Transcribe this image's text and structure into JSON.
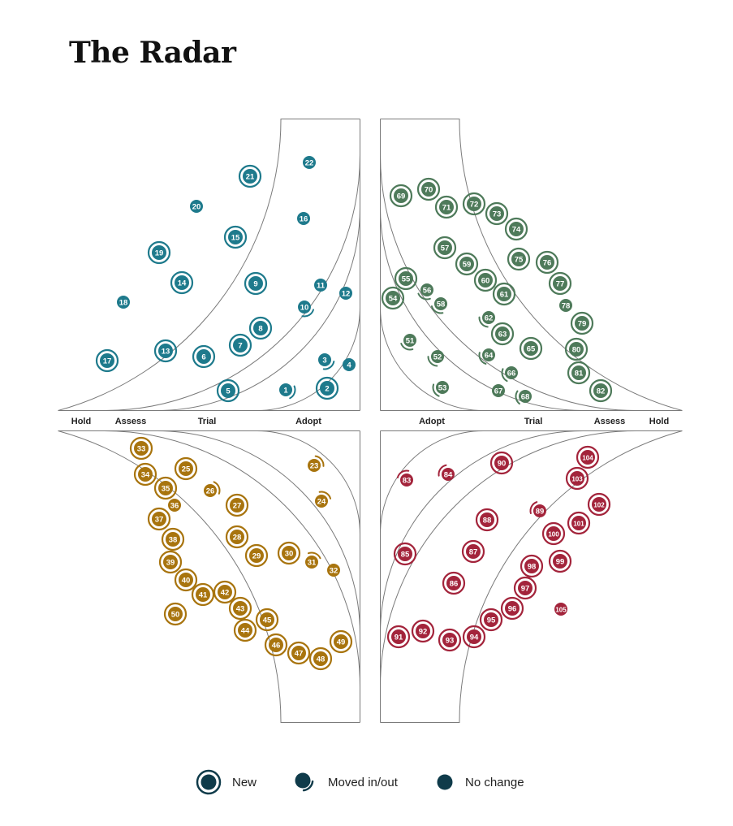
{
  "title": "The Radar",
  "rings": [
    "Adopt",
    "Trial",
    "Assess",
    "Hold"
  ],
  "quadrant_colors": {
    "top-left": "#1e7a8c",
    "top-right": "#4e7a5a",
    "bottom-left": "#a8740e",
    "bottom-right": "#a3243b"
  },
  "legend": {
    "new_label": "New",
    "moved_label": "Moved in/out",
    "nochange_label": "No change",
    "icon_color": "#0f3b4a"
  },
  "blips": [
    {
      "n": "1",
      "q": "top-left",
      "s": "moved"
    },
    {
      "n": "2",
      "q": "top-left",
      "s": "new"
    },
    {
      "n": "3",
      "q": "top-left",
      "s": "moved"
    },
    {
      "n": "4",
      "q": "top-left",
      "s": "none"
    },
    {
      "n": "5",
      "q": "top-left",
      "s": "new"
    },
    {
      "n": "6",
      "q": "top-left",
      "s": "new"
    },
    {
      "n": "7",
      "q": "top-left",
      "s": "new"
    },
    {
      "n": "8",
      "q": "top-left",
      "s": "new"
    },
    {
      "n": "9",
      "q": "top-left",
      "s": "new"
    },
    {
      "n": "10",
      "q": "top-left",
      "s": "moved"
    },
    {
      "n": "11",
      "q": "top-left",
      "s": "none"
    },
    {
      "n": "12",
      "q": "top-left",
      "s": "none"
    },
    {
      "n": "13",
      "q": "top-left",
      "s": "new"
    },
    {
      "n": "14",
      "q": "top-left",
      "s": "new"
    },
    {
      "n": "15",
      "q": "top-left",
      "s": "new"
    },
    {
      "n": "16",
      "q": "top-left",
      "s": "none"
    },
    {
      "n": "17",
      "q": "top-left",
      "s": "new"
    },
    {
      "n": "18",
      "q": "top-left",
      "s": "none"
    },
    {
      "n": "19",
      "q": "top-left",
      "s": "new"
    },
    {
      "n": "20",
      "q": "top-left",
      "s": "none"
    },
    {
      "n": "21",
      "q": "top-left",
      "s": "new"
    },
    {
      "n": "22",
      "q": "top-left",
      "s": "none"
    },
    {
      "n": "23",
      "q": "bottom-left",
      "s": "moved"
    },
    {
      "n": "24",
      "q": "bottom-left",
      "s": "moved"
    },
    {
      "n": "25",
      "q": "bottom-left",
      "s": "new"
    },
    {
      "n": "26",
      "q": "bottom-left",
      "s": "moved"
    },
    {
      "n": "27",
      "q": "bottom-left",
      "s": "new"
    },
    {
      "n": "28",
      "q": "bottom-left",
      "s": "new"
    },
    {
      "n": "29",
      "q": "bottom-left",
      "s": "new"
    },
    {
      "n": "30",
      "q": "bottom-left",
      "s": "new"
    },
    {
      "n": "31",
      "q": "bottom-left",
      "s": "moved"
    },
    {
      "n": "32",
      "q": "bottom-left",
      "s": "none"
    },
    {
      "n": "33",
      "q": "bottom-left",
      "s": "new"
    },
    {
      "n": "34",
      "q": "bottom-left",
      "s": "new"
    },
    {
      "n": "35",
      "q": "bottom-left",
      "s": "new"
    },
    {
      "n": "36",
      "q": "bottom-left",
      "s": "none"
    },
    {
      "n": "37",
      "q": "bottom-left",
      "s": "new"
    },
    {
      "n": "38",
      "q": "bottom-left",
      "s": "new"
    },
    {
      "n": "39",
      "q": "bottom-left",
      "s": "new"
    },
    {
      "n": "40",
      "q": "bottom-left",
      "s": "new"
    },
    {
      "n": "41",
      "q": "bottom-left",
      "s": "new"
    },
    {
      "n": "42",
      "q": "bottom-left",
      "s": "new"
    },
    {
      "n": "43",
      "q": "bottom-left",
      "s": "new"
    },
    {
      "n": "44",
      "q": "bottom-left",
      "s": "new"
    },
    {
      "n": "45",
      "q": "bottom-left",
      "s": "new"
    },
    {
      "n": "46",
      "q": "bottom-left",
      "s": "new"
    },
    {
      "n": "47",
      "q": "bottom-left",
      "s": "new"
    },
    {
      "n": "48",
      "q": "bottom-left",
      "s": "new"
    },
    {
      "n": "49",
      "q": "bottom-left",
      "s": "new"
    },
    {
      "n": "50",
      "q": "bottom-left",
      "s": "new"
    },
    {
      "n": "51",
      "q": "top-right",
      "s": "moved"
    },
    {
      "n": "52",
      "q": "top-right",
      "s": "moved"
    },
    {
      "n": "53",
      "q": "top-right",
      "s": "moved"
    },
    {
      "n": "54",
      "q": "top-right",
      "s": "new"
    },
    {
      "n": "55",
      "q": "top-right",
      "s": "new"
    },
    {
      "n": "56",
      "q": "top-right",
      "s": "moved"
    },
    {
      "n": "57",
      "q": "top-right",
      "s": "new"
    },
    {
      "n": "58",
      "q": "top-right",
      "s": "moved"
    },
    {
      "n": "59",
      "q": "top-right",
      "s": "new"
    },
    {
      "n": "60",
      "q": "top-right",
      "s": "new"
    },
    {
      "n": "61",
      "q": "top-right",
      "s": "new"
    },
    {
      "n": "62",
      "q": "top-right",
      "s": "moved"
    },
    {
      "n": "63",
      "q": "top-right",
      "s": "new"
    },
    {
      "n": "64",
      "q": "top-right",
      "s": "moved"
    },
    {
      "n": "65",
      "q": "top-right",
      "s": "new"
    },
    {
      "n": "66",
      "q": "top-right",
      "s": "moved"
    },
    {
      "n": "67",
      "q": "top-right",
      "s": "none"
    },
    {
      "n": "68",
      "q": "top-right",
      "s": "moved"
    },
    {
      "n": "69",
      "q": "top-right",
      "s": "new"
    },
    {
      "n": "70",
      "q": "top-right",
      "s": "new"
    },
    {
      "n": "71",
      "q": "top-right",
      "s": "new"
    },
    {
      "n": "72",
      "q": "top-right",
      "s": "new"
    },
    {
      "n": "73",
      "q": "top-right",
      "s": "new"
    },
    {
      "n": "74",
      "q": "top-right",
      "s": "new"
    },
    {
      "n": "75",
      "q": "top-right",
      "s": "new"
    },
    {
      "n": "76",
      "q": "top-right",
      "s": "new"
    },
    {
      "n": "77",
      "q": "top-right",
      "s": "new"
    },
    {
      "n": "78",
      "q": "top-right",
      "s": "none"
    },
    {
      "n": "79",
      "q": "top-right",
      "s": "new"
    },
    {
      "n": "80",
      "q": "top-right",
      "s": "new"
    },
    {
      "n": "81",
      "q": "top-right",
      "s": "new"
    },
    {
      "n": "82",
      "q": "top-right",
      "s": "new"
    },
    {
      "n": "83",
      "q": "bottom-right",
      "s": "moved"
    },
    {
      "n": "84",
      "q": "bottom-right",
      "s": "moved"
    },
    {
      "n": "85",
      "q": "bottom-right",
      "s": "new"
    },
    {
      "n": "86",
      "q": "bottom-right",
      "s": "new"
    },
    {
      "n": "87",
      "q": "bottom-right",
      "s": "new"
    },
    {
      "n": "88",
      "q": "bottom-right",
      "s": "new"
    },
    {
      "n": "89",
      "q": "bottom-right",
      "s": "moved"
    },
    {
      "n": "90",
      "q": "bottom-right",
      "s": "new"
    },
    {
      "n": "91",
      "q": "bottom-right",
      "s": "new"
    },
    {
      "n": "92",
      "q": "bottom-right",
      "s": "new"
    },
    {
      "n": "93",
      "q": "bottom-right",
      "s": "new"
    },
    {
      "n": "94",
      "q": "bottom-right",
      "s": "new"
    },
    {
      "n": "95",
      "q": "bottom-right",
      "s": "new"
    },
    {
      "n": "96",
      "q": "bottom-right",
      "s": "new"
    },
    {
      "n": "97",
      "q": "bottom-right",
      "s": "new"
    },
    {
      "n": "98",
      "q": "bottom-right",
      "s": "new"
    },
    {
      "n": "99",
      "q": "bottom-right",
      "s": "new"
    },
    {
      "n": "100",
      "q": "bottom-right",
      "s": "new"
    },
    {
      "n": "101",
      "q": "bottom-right",
      "s": "new"
    },
    {
      "n": "102",
      "q": "bottom-right",
      "s": "new"
    },
    {
      "n": "103",
      "q": "bottom-right",
      "s": "new"
    },
    {
      "n": "104",
      "q": "bottom-right",
      "s": "new"
    },
    {
      "n": "105",
      "q": "bottom-right",
      "s": "none"
    }
  ]
}
